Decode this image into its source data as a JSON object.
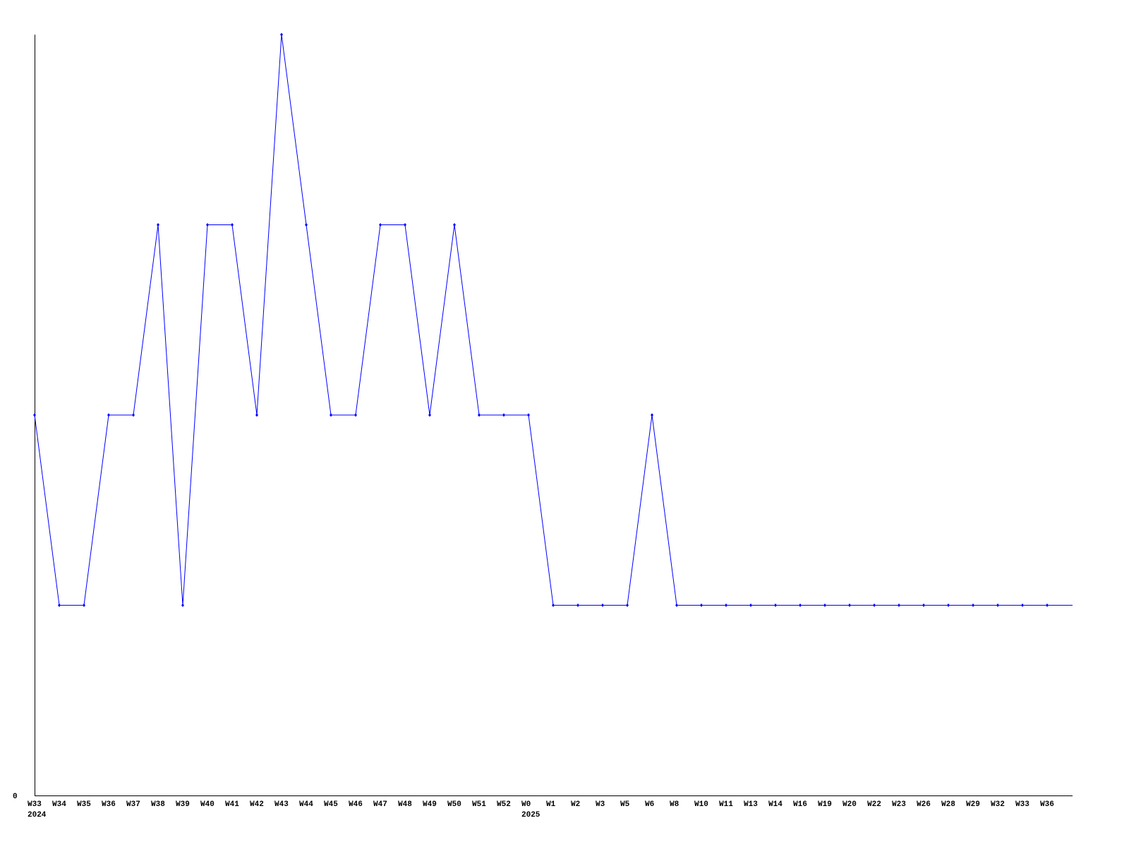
{
  "chart_data": {
    "type": "line",
    "title": "",
    "xlabel": "",
    "ylabel": "",
    "ylim": [
      0,
      4
    ],
    "y_tick_labels": [
      "0"
    ],
    "grid": false,
    "line_color": "#0000ff",
    "categories": [
      "W33",
      "W34",
      "W35",
      "W36",
      "W37",
      "W38",
      "W39",
      "W40",
      "W41",
      "W42",
      "W43",
      "W44",
      "W45",
      "W46",
      "W47",
      "W48",
      "W49",
      "W50",
      "W51",
      "W52",
      "W0",
      "W1",
      "W2",
      "W3",
      "W5",
      "W6",
      "W8",
      "W10",
      "W11",
      "W13",
      "W14",
      "W16",
      "W19",
      "W20",
      "W22",
      "W23",
      "W26",
      "W28",
      "W29",
      "W32",
      "W33",
      "W36"
    ],
    "year_labels": [
      {
        "index": 0,
        "label": "2024"
      },
      {
        "index": 20,
        "label": "2025"
      }
    ],
    "values": [
      2,
      1,
      1,
      2,
      2,
      3,
      1,
      3,
      3,
      2,
      4,
      3,
      2,
      2,
      3,
      3,
      2,
      3,
      2,
      2,
      2,
      1,
      1,
      1,
      1,
      2,
      1,
      1,
      1,
      1,
      1,
      1,
      1,
      1,
      1,
      1,
      1,
      1,
      1,
      1,
      1,
      1
    ]
  }
}
